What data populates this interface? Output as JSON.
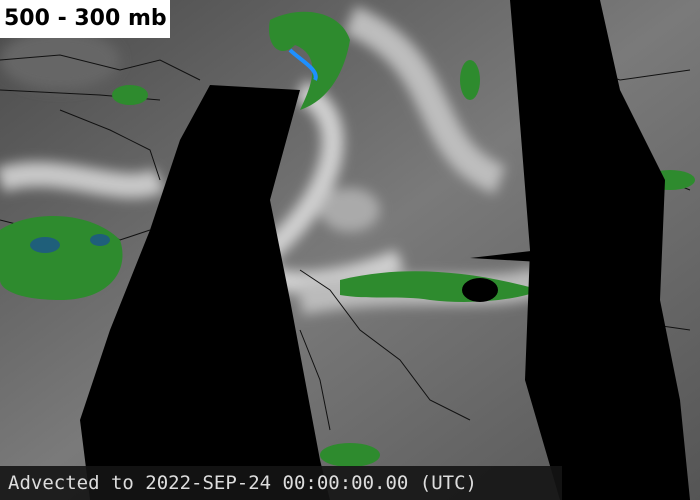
{
  "title": "500 - 300 mb",
  "footer": "Advected to 2022-SEP-24 00:00:00.00 (UTC)"
}
